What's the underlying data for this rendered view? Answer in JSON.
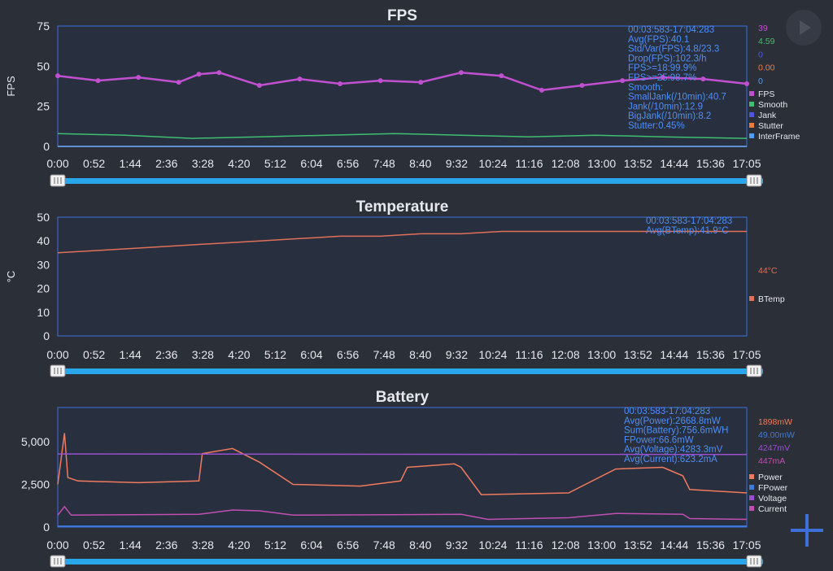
{
  "colors": {
    "background": "#2b2f38",
    "plot_bg": "#283040",
    "plot_border": "#3f6fd8",
    "axis_text": "#e6e8ee",
    "info_text": "#4f8ef5",
    "slider_track": "#2aa6ea",
    "fps": "#c050d0",
    "smooth": "#3fbf6f",
    "jank": "#5055e0",
    "stutter": "#f07b3f",
    "interframe": "#4f9ef5",
    "btemp": "#e0705a",
    "power": "#ef7a5e",
    "fpower": "#3f7ad8",
    "voltage": "#9a4fd0",
    "current": "#c04fb0"
  },
  "controls": {
    "play_icon": "play-icon",
    "add_icon": "plus-icon"
  },
  "chart_data": [
    {
      "type": "line",
      "title": "FPS",
      "ylabel": "FPS",
      "ylim": [
        0,
        75
      ],
      "yticks": [
        0,
        25,
        50,
        75
      ],
      "xticks": [
        "0:00",
        "0:52",
        "1:44",
        "2:36",
        "3:28",
        "4:20",
        "5:12",
        "6:04",
        "6:56",
        "7:48",
        "8:40",
        "9:32",
        "10:24",
        "11:16",
        "12:08",
        "13:00",
        "13:52",
        "14:44",
        "15:36",
        "17:05"
      ],
      "x_range_seconds": [
        0,
        1025
      ],
      "stats": [
        "00:03:583-17:04:283",
        "Avg(FPS):40.1",
        "Std/Var(FPS):4.8/23.3",
        "Drop(FPS):102.3/h",
        "FPS>=18:99.9%",
        "FPS>=25:98.7%",
        "Smooth:",
        "SmallJank(/10min):40.7",
        "Jank(/10min):12.9",
        "BigJank(/10min):8.2",
        "Stutter:0.45%"
      ],
      "current_values": [
        {
          "value": "39",
          "color": "#c050d0"
        },
        {
          "value": "4.59",
          "color": "#3fbf6f"
        },
        {
          "value": "0",
          "color": "#5055e0"
        },
        {
          "value": "0.00",
          "color": "#f07b3f"
        },
        {
          "value": "0",
          "color": "#4f9ef5"
        }
      ],
      "series": [
        {
          "name": "FPS",
          "color": "#c050d0",
          "x": [
            0,
            60,
            120,
            180,
            210,
            240,
            300,
            360,
            420,
            480,
            540,
            600,
            660,
            720,
            780,
            840,
            900,
            960,
            1025
          ],
          "y": [
            44,
            41,
            43,
            40,
            45,
            46,
            38,
            42,
            39,
            41,
            40,
            46,
            44,
            35,
            38,
            41,
            43,
            42,
            39
          ]
        },
        {
          "name": "Smooth",
          "color": "#3fbf6f",
          "x": [
            0,
            100,
            200,
            300,
            400,
            500,
            600,
            700,
            800,
            900,
            1025
          ],
          "y": [
            8,
            7,
            5,
            6,
            7,
            8,
            7,
            6,
            7,
            6,
            5
          ]
        },
        {
          "name": "Jank",
          "color": "#5055e0",
          "x": [
            0,
            1025
          ],
          "y": [
            0,
            0
          ]
        },
        {
          "name": "Stutter",
          "color": "#f07b3f",
          "x": [
            0,
            1025
          ],
          "y": [
            0,
            0
          ]
        },
        {
          "name": "InterFrame",
          "color": "#4f9ef5",
          "x": [
            0,
            1025
          ],
          "y": [
            0,
            0
          ]
        }
      ]
    },
    {
      "type": "line",
      "title": "Temperature",
      "ylabel": "°C",
      "ylim": [
        0,
        50
      ],
      "yticks": [
        0,
        10,
        20,
        30,
        40,
        50
      ],
      "xticks": [
        "0:00",
        "0:52",
        "1:44",
        "2:36",
        "3:28",
        "4:20",
        "5:12",
        "6:04",
        "6:56",
        "7:48",
        "8:40",
        "9:32",
        "10:24",
        "11:16",
        "12:08",
        "13:00",
        "13:52",
        "14:44",
        "15:36",
        "17:05"
      ],
      "x_range_seconds": [
        0,
        1025
      ],
      "stats": [
        "00:03:583-17:04:283",
        "Avg(BTemp):41.9°C"
      ],
      "current_values": [
        {
          "value": "44°C",
          "color": "#e0705a"
        }
      ],
      "series": [
        {
          "name": "BTemp",
          "color": "#e0705a",
          "x": [
            0,
            60,
            120,
            180,
            240,
            300,
            360,
            420,
            480,
            540,
            600,
            660,
            720,
            780,
            840,
            900,
            960,
            1025
          ],
          "y": [
            35,
            36,
            37,
            38,
            39,
            40,
            41,
            42,
            42,
            43,
            43,
            44,
            44,
            44,
            44,
            44,
            44,
            44
          ]
        }
      ]
    },
    {
      "type": "line",
      "title": "Battery",
      "ylabel": "",
      "ylim": [
        0,
        7000
      ],
      "yticks": [
        0,
        2500,
        5000
      ],
      "ytick_labels": [
        "0",
        "2,500",
        "5,000"
      ],
      "xticks": [
        "0:00",
        "0:52",
        "1:44",
        "2:36",
        "3:28",
        "4:20",
        "5:12",
        "6:04",
        "6:56",
        "7:48",
        "8:40",
        "9:32",
        "10:24",
        "11:16",
        "12:08",
        "13:00",
        "13:52",
        "14:44",
        "15:36",
        "17:05"
      ],
      "x_range_seconds": [
        0,
        1025
      ],
      "stats": [
        "00:03:583-17:04:283",
        "Avg(Power):2668.8mW",
        "Sum(Battery):756.6mWH",
        "FPower:66.6mW",
        "Avg(Voltage):4283.3mV",
        "Avg(Current):623.2mA"
      ],
      "current_values": [
        {
          "value": "1898mW",
          "color": "#ef7a5e"
        },
        {
          "value": "49.00mW",
          "color": "#3f7ad8"
        },
        {
          "value": "4247mV",
          "color": "#9a4fd0"
        },
        {
          "value": "447mA",
          "color": "#c04fb0"
        }
      ],
      "series": [
        {
          "name": "Power",
          "color": "#ef7a5e",
          "x": [
            0,
            10,
            15,
            30,
            120,
            210,
            215,
            260,
            300,
            350,
            450,
            510,
            520,
            590,
            600,
            630,
            760,
            830,
            900,
            930,
            940,
            1025
          ],
          "y": [
            2500,
            5500,
            2900,
            2700,
            2600,
            2700,
            4300,
            4600,
            3800,
            2500,
            2400,
            2700,
            3500,
            3700,
            3500,
            1900,
            2000,
            3400,
            3500,
            3000,
            2200,
            2000
          ]
        },
        {
          "name": "FPower",
          "color": "#3f7ad8",
          "x": [
            0,
            1025
          ],
          "y": [
            60,
            60
          ]
        },
        {
          "name": "Voltage",
          "color": "#9a4fd0",
          "x": [
            0,
            1025
          ],
          "y": [
            4283,
            4247
          ]
        },
        {
          "name": "Current",
          "color": "#c04fb0",
          "x": [
            0,
            10,
            20,
            210,
            260,
            300,
            350,
            600,
            640,
            760,
            830,
            930,
            940,
            1025
          ],
          "y": [
            700,
            1200,
            700,
            750,
            1000,
            950,
            700,
            750,
            450,
            550,
            800,
            750,
            500,
            450
          ]
        }
      ]
    }
  ]
}
